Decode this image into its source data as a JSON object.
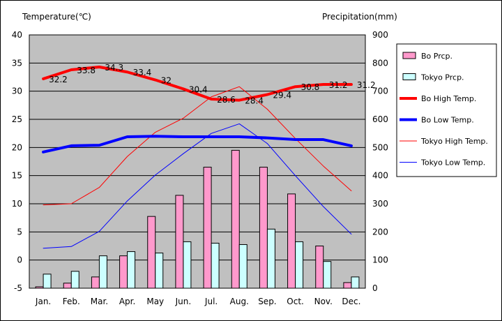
{
  "chart_data": {
    "type": "combo-bar-line",
    "left_axis": {
      "label": "Temperature(℃)",
      "range": [
        -5,
        40
      ],
      "ticks": [
        40,
        35,
        30,
        25,
        20,
        15,
        10,
        5,
        0,
        -5
      ]
    },
    "right_axis": {
      "label": "Precipitation(mm)",
      "range": [
        0,
        900
      ],
      "ticks": [
        900,
        800,
        700,
        600,
        500,
        400,
        300,
        200,
        100,
        0
      ]
    },
    "categories": [
      "Jan.",
      "Feb.",
      "Mar.",
      "Apr.",
      "May",
      "Jun.",
      "Jul.",
      "Aug.",
      "Sep.",
      "Oct.",
      "Nov.",
      "Dec."
    ],
    "bar_series": [
      {
        "name": "Bo Prcp.",
        "color": "#ff99cc",
        "values": [
          5,
          18,
          40,
          115,
          255,
          330,
          430,
          490,
          430,
          335,
          150,
          20
        ]
      },
      {
        "name": "Tokyo Prcp.",
        "color": "#ccffff",
        "values": [
          50,
          60,
          115,
          130,
          125,
          165,
          160,
          155,
          210,
          165,
          95,
          40
        ]
      }
    ],
    "line_series": [
      {
        "name": "Bo High Temp.",
        "color": "#ff0000",
        "width": "thick",
        "values": [
          32.2,
          33.8,
          34.3,
          33.4,
          32,
          30.4,
          28.6,
          28.4,
          29.4,
          30.8,
          31.2,
          31.2
        ],
        "labels": [
          "32.2",
          "33.8",
          "34.3",
          "33.4",
          "32",
          "30.4",
          "28.6",
          "28.4",
          "29.4",
          "30.8",
          "31.2",
          "31.2"
        ]
      },
      {
        "name": "Bo Low Temp.",
        "color": "#0000ff",
        "width": "thick",
        "values": [
          19.2,
          20.3,
          20.4,
          21.9,
          22,
          21.9,
          21.9,
          21.9,
          21.7,
          21.4,
          21.4,
          20.3
        ]
      },
      {
        "name": "Tokyo High Temp.",
        "color": "#ff0000",
        "width": "thin",
        "values": [
          9.8,
          10,
          12.9,
          18.4,
          22.7,
          25.2,
          29,
          30.8,
          26.8,
          21.6,
          16.7,
          12.3
        ]
      },
      {
        "name": "Tokyo Low Temp.",
        "color": "#0000ff",
        "width": "thin",
        "values": [
          2.1,
          2.4,
          5.1,
          10.5,
          15.1,
          18.9,
          22.5,
          24.2,
          20.7,
          15,
          9.5,
          4.6
        ]
      }
    ],
    "legend": [
      "Bo Prcp.",
      "Tokyo Prcp.",
      "Bo High Temp.",
      "Bo Low Temp.",
      "Tokyo High Temp.",
      "Tokyo Low Temp."
    ],
    "legend_position": "right",
    "grid": true
  },
  "colors": {
    "plot_bg": "#c0c0c0",
    "grid": "#000000"
  }
}
